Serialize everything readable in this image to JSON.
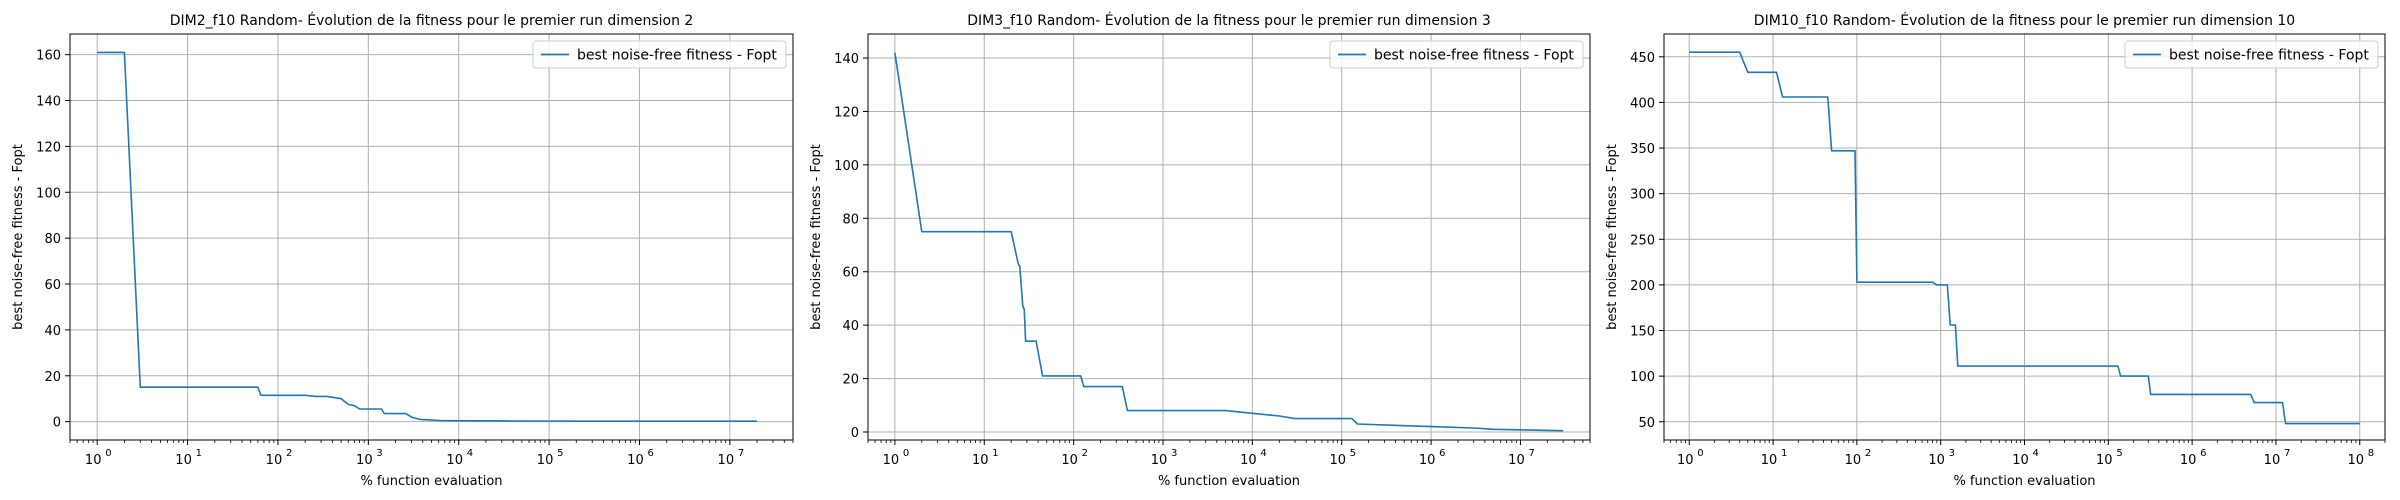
{
  "chart_data": [
    {
      "type": "line",
      "title": "DIM2_f10 Random- Évolution de la fitness pour le premier run dimension 2",
      "xlabel": "% function evaluation",
      "ylabel": "best noise-free fitness - Fopt",
      "xscale": "log",
      "xlim": [
        0.5,
        50000000
      ],
      "ylim": [
        -8,
        169
      ],
      "yticks": [
        0,
        20,
        40,
        60,
        80,
        100,
        120,
        140,
        160
      ],
      "xtick_exponents": [
        0,
        1,
        2,
        3,
        4,
        5,
        6,
        7
      ],
      "grid": true,
      "legend_position": "top-right",
      "color": "#1f77b4",
      "series": [
        {
          "name": "best noise-free fitness - Fopt",
          "x": [
            1,
            2,
            3,
            3.2,
            60,
            65,
            200,
            260,
            350,
            500,
            600,
            700,
            800,
            1400,
            1500,
            2600,
            3000,
            3700,
            4500,
            6000,
            9000,
            40000,
            200000,
            20000000
          ],
          "y": [
            161,
            161,
            15,
            15,
            15,
            11.5,
            11.5,
            11,
            11,
            10,
            7.5,
            7,
            5.5,
            5.5,
            3.5,
            3.5,
            2,
            1,
            0.8,
            0.5,
            0.4,
            0.3,
            0.2,
            0.2
          ]
        }
      ]
    },
    {
      "type": "line",
      "title": "DIM3_f10 Random- Évolution de la fitness pour le premier run dimension 3",
      "xlabel": "% function evaluation",
      "ylabel": "best noise-free fitness - Fopt",
      "xscale": "log",
      "xlim": [
        0.5,
        60000000
      ],
      "ylim": [
        -3,
        149
      ],
      "yticks": [
        0,
        20,
        40,
        60,
        80,
        100,
        120,
        140
      ],
      "xtick_exponents": [
        0,
        1,
        2,
        3,
        4,
        5,
        6,
        7
      ],
      "grid": true,
      "legend_position": "top-right",
      "color": "#1f77b4",
      "series": [
        {
          "name": "best noise-free fitness - Fopt",
          "x": [
            1,
            2,
            20,
            24,
            25,
            27,
            28,
            29,
            30,
            31,
            38,
            45,
            120,
            130,
            350,
            400,
            5000,
            10000,
            20000,
            30000,
            130000,
            150000,
            1000000,
            3000000,
            5000000,
            30000000
          ],
          "y": [
            142,
            75,
            75,
            63,
            62,
            47,
            46,
            34,
            34,
            34,
            34,
            21,
            21,
            17,
            17,
            8,
            8,
            7,
            6,
            5,
            5,
            3,
            2,
            1.5,
            1,
            0.5
          ]
        }
      ]
    },
    {
      "type": "line",
      "title": "DIM10_f10 Random- Évolution de la fitness pour le premier run dimension 10",
      "xlabel": "% function evaluation",
      "ylabel": "best noise-free fitness - Fopt",
      "xscale": "log",
      "xlim": [
        0.5,
        200000000
      ],
      "ylim": [
        30,
        475
      ],
      "yticks": [
        50,
        100,
        150,
        200,
        250,
        300,
        350,
        400,
        450
      ],
      "xtick_exponents": [
        0,
        1,
        2,
        3,
        4,
        5,
        6,
        7,
        8
      ],
      "grid": true,
      "legend_position": "top-right",
      "color": "#1f77b4",
      "series": [
        {
          "name": "best noise-free fitness - Fopt",
          "x": [
            1,
            4,
            5,
            11,
            13,
            45,
            50,
            95,
            100,
            800,
            900,
            1200,
            1300,
            1500,
            1600,
            130000,
            140000,
            300000,
            320000,
            5000000,
            5500000,
            12000000,
            13000000,
            100000000
          ],
          "y": [
            455,
            455,
            433,
            433,
            406,
            406,
            347,
            347,
            203,
            203,
            200,
            200,
            156,
            156,
            111,
            111,
            100,
            100,
            80,
            80,
            71,
            71,
            48,
            48
          ]
        }
      ]
    }
  ]
}
